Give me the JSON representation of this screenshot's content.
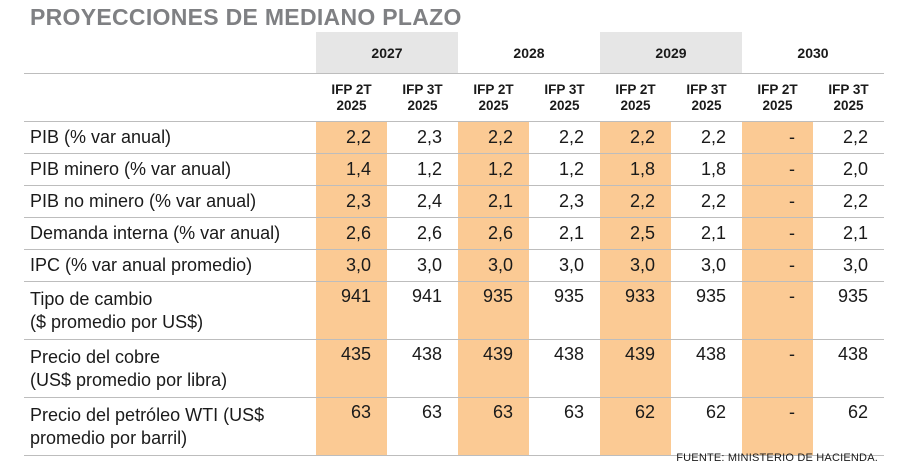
{
  "title": "PROYECCIONES DE MEDIANO PLAZO",
  "years": [
    "2027",
    "2028",
    "2029",
    "2030"
  ],
  "subheaders": [
    {
      "l1": "IFP 2T",
      "l2": "2025"
    },
    {
      "l1": "IFP 3T",
      "l2": "2025"
    },
    {
      "l1": "IFP 2T",
      "l2": "2025"
    },
    {
      "l1": "IFP 3T",
      "l2": "2025"
    },
    {
      "l1": "IFP 2T",
      "l2": "2025"
    },
    {
      "l1": "IFP 3T",
      "l2": "2025"
    },
    {
      "l1": "IFP 2T",
      "l2": "2025"
    },
    {
      "l1": "IFP 3T",
      "l2": "2025"
    }
  ],
  "rows": [
    {
      "label": "PIB (% var anual)",
      "values": [
        "2,2",
        "2,3",
        "2,2",
        "2,2",
        "2,2",
        "2,2",
        "-",
        "2,2"
      ]
    },
    {
      "label": "PIB minero (% var anual)",
      "values": [
        "1,4",
        "1,2",
        "1,2",
        "1,2",
        "1,8",
        "1,8",
        "-",
        "2,0"
      ]
    },
    {
      "label": "PIB no minero (% var anual)",
      "values": [
        "2,3",
        "2,4",
        "2,1",
        "2,3",
        "2,2",
        "2,2",
        "-",
        "2,2"
      ]
    },
    {
      "label": "Demanda interna (% var anual)",
      "values": [
        "2,6",
        "2,6",
        "2,6",
        "2,1",
        "2,5",
        "2,1",
        "-",
        "2,1"
      ]
    },
    {
      "label": "IPC (% var anual promedio)",
      "values": [
        "3,0",
        "3,0",
        "3,0",
        "3,0",
        "3,0",
        "3,0",
        "-",
        "3,0"
      ]
    },
    {
      "label": "Tipo de cambio",
      "label2": "($ promedio por US$)",
      "values": [
        "941",
        "941",
        "935",
        "935",
        "933",
        "935",
        "-",
        "935"
      ]
    },
    {
      "label": "Precio del cobre",
      "label2": "(US$ promedio por libra)",
      "values": [
        "435",
        "438",
        "439",
        "438",
        "439",
        "438",
        "-",
        "438"
      ]
    },
    {
      "label": "Precio del petróleo WTI (US$",
      "label2": "promedio por barril)",
      "values": [
        "63",
        "63",
        "63",
        "63",
        "62",
        "62",
        "-",
        "62"
      ]
    }
  ],
  "source": "FUENTE: MINISTERIO DE HACIENDA.",
  "colors": {
    "highlight": "#fbca94",
    "header_shade": "#e6e6e6",
    "title": "#7f8083"
  }
}
